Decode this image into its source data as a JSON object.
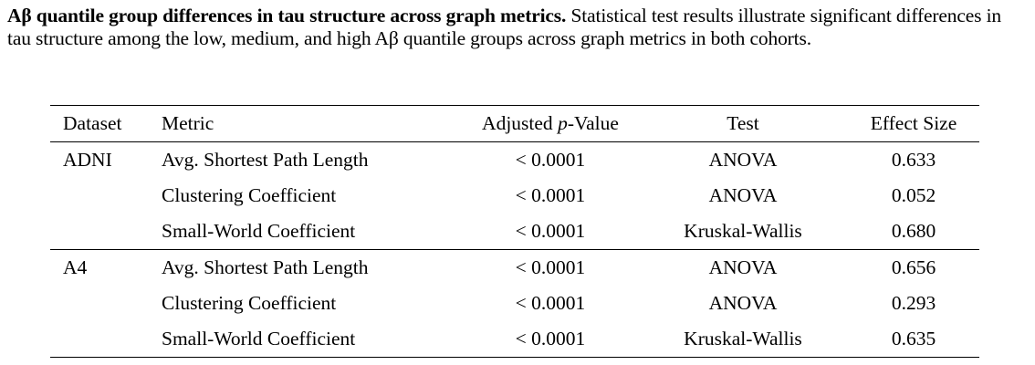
{
  "caption": {
    "title": "Aβ quantile group differences in tau structure across graph metrics.",
    "text": " Statistical test results illustrate significant differences in tau structure among the low, medium, and high Aβ quantile groups across graph metrics in both cohorts."
  },
  "table": {
    "headers": {
      "dataset": "Dataset",
      "metric": "Metric",
      "pvalue_pre": "Adjusted ",
      "pvalue_italic": "p",
      "pvalue_post": "-Value",
      "test": "Test",
      "effect": "Effect Size"
    },
    "groups": [
      {
        "dataset": "ADNI",
        "rows": [
          {
            "metric": "Avg. Shortest Path Length",
            "pvalue": "< 0.0001",
            "test": "ANOVA",
            "effect": "0.633"
          },
          {
            "metric": "Clustering Coefficient",
            "pvalue": "< 0.0001",
            "test": "ANOVA",
            "effect": "0.052"
          },
          {
            "metric": "Small-World Coefficient",
            "pvalue": "< 0.0001",
            "test": "Kruskal-Wallis",
            "effect": "0.680"
          }
        ]
      },
      {
        "dataset": "A4",
        "rows": [
          {
            "metric": "Avg. Shortest Path Length",
            "pvalue": "< 0.0001",
            "test": "ANOVA",
            "effect": "0.656"
          },
          {
            "metric": "Clustering Coefficient",
            "pvalue": "< 0.0001",
            "test": "ANOVA",
            "effect": "0.293"
          },
          {
            "metric": "Small-World Coefficient",
            "pvalue": "< 0.0001",
            "test": "Kruskal-Wallis",
            "effect": "0.635"
          }
        ]
      }
    ]
  }
}
